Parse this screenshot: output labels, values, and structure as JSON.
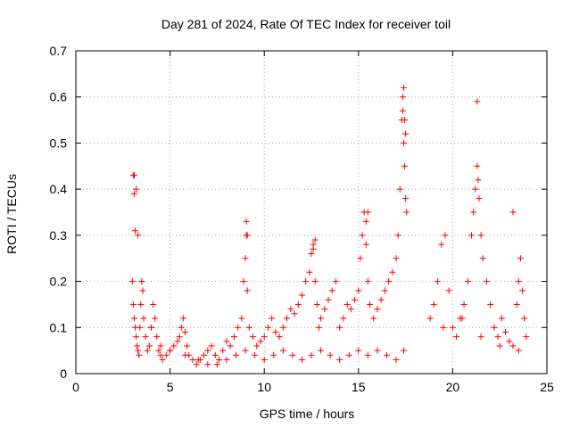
{
  "chart_data": {
    "type": "scatter",
    "title": "Day 281 of 2024, Rate Of TEC Index for receiver toil",
    "xlabel": "GPS time / hours",
    "ylabel": "ROTI / TECUs",
    "xlim": [
      0,
      25
    ],
    "ylim": [
      0,
      0.7
    ],
    "xticks": [
      "0",
      "5",
      "10",
      "15",
      "20",
      "25"
    ],
    "yticks": [
      "0",
      "0.1",
      "0.2",
      "0.3",
      "0.4",
      "0.5",
      "0.6",
      "0.7"
    ],
    "grid": true,
    "marker": "+",
    "color": "#ff0000",
    "series": [
      {
        "x": [
          3.0,
          3.05,
          3.1,
          3.15,
          3.2,
          3.25,
          3.3,
          3.35,
          3.4,
          3.45,
          3.5,
          3.55,
          3.6,
          3.7,
          3.8,
          3.9,
          4.0,
          4.1,
          4.2,
          4.3,
          4.4,
          4.5,
          4.6,
          4.8,
          5.0,
          5.2,
          5.4,
          5.5,
          5.6,
          5.7,
          5.8,
          5.9,
          6.0,
          6.2,
          6.4,
          6.6,
          6.8,
          7.0,
          7.2,
          7.4,
          7.6,
          7.8,
          8.0,
          8.2,
          8.4,
          8.6,
          8.8,
          8.9,
          9.0,
          9.05,
          9.1,
          9.2,
          9.4,
          9.6,
          9.8,
          10.0,
          10.2,
          10.4,
          10.6,
          10.8,
          11.0,
          11.2,
          11.4,
          11.6,
          11.8,
          12.0,
          12.2,
          12.4,
          12.5,
          12.6,
          12.7,
          12.8,
          12.9,
          13.0,
          13.2,
          13.4,
          13.6,
          13.8,
          14.0,
          14.2,
          14.4,
          14.6,
          14.8,
          15.0,
          15.1,
          15.2,
          15.3,
          15.4,
          15.5,
          15.6,
          15.8,
          16.0,
          16.2,
          16.4,
          16.6,
          16.8,
          17.0,
          17.1,
          17.2,
          17.3,
          17.35,
          17.4,
          17.45,
          17.5,
          17.55,
          18.8,
          19.0,
          19.2,
          19.4,
          19.6,
          19.8,
          20.0,
          20.2,
          20.4,
          20.6,
          20.8,
          21.0,
          21.1,
          21.2,
          21.3,
          21.4,
          21.5,
          21.6,
          21.8,
          22.0,
          22.2,
          22.4,
          22.6,
          22.8,
          23.0,
          23.2,
          23.4,
          23.5,
          23.6,
          23.7,
          23.8,
          23.9,
          3.1,
          3.2,
          3.3,
          3.5,
          4.0,
          4.5,
          5.0,
          5.8,
          6.5,
          7.0,
          7.5,
          8.0,
          8.5,
          9.0,
          9.5,
          10.0,
          10.5,
          11.0,
          11.5,
          12.0,
          12.5,
          13.0,
          13.5,
          14.0,
          14.5,
          15.0,
          15.5,
          16.0,
          16.5,
          17.0,
          17.4,
          19.5,
          20.5,
          21.5,
          22.5,
          23.5,
          3.05,
          3.1,
          3.15,
          9.05,
          9.1,
          12.6,
          12.7,
          15.4,
          15.5,
          17.35,
          17.4,
          17.45,
          17.5,
          21.3,
          21.35,
          23.2
        ],
        "y": [
          0.2,
          0.15,
          0.12,
          0.1,
          0.08,
          0.06,
          0.05,
          0.04,
          0.1,
          0.15,
          0.2,
          0.18,
          0.12,
          0.08,
          0.05,
          0.06,
          0.1,
          0.15,
          0.12,
          0.08,
          0.05,
          0.04,
          0.03,
          0.04,
          0.05,
          0.06,
          0.07,
          0.08,
          0.1,
          0.12,
          0.09,
          0.06,
          0.04,
          0.03,
          0.02,
          0.03,
          0.04,
          0.05,
          0.06,
          0.04,
          0.03,
          0.05,
          0.07,
          0.06,
          0.08,
          0.1,
          0.12,
          0.2,
          0.25,
          0.3,
          0.18,
          0.1,
          0.08,
          0.06,
          0.07,
          0.08,
          0.1,
          0.12,
          0.09,
          0.08,
          0.1,
          0.12,
          0.14,
          0.13,
          0.15,
          0.17,
          0.2,
          0.22,
          0.26,
          0.28,
          0.2,
          0.15,
          0.1,
          0.12,
          0.14,
          0.16,
          0.18,
          0.2,
          0.1,
          0.12,
          0.15,
          0.14,
          0.16,
          0.18,
          0.25,
          0.3,
          0.35,
          0.28,
          0.2,
          0.15,
          0.12,
          0.14,
          0.16,
          0.18,
          0.2,
          0.22,
          0.25,
          0.3,
          0.4,
          0.55,
          0.6,
          0.5,
          0.45,
          0.38,
          0.35,
          0.12,
          0.15,
          0.2,
          0.28,
          0.3,
          0.18,
          0.1,
          0.08,
          0.12,
          0.15,
          0.2,
          0.3,
          0.35,
          0.4,
          0.45,
          0.38,
          0.3,
          0.25,
          0.2,
          0.15,
          0.1,
          0.08,
          0.12,
          0.09,
          0.07,
          0.06,
          0.15,
          0.2,
          0.25,
          0.18,
          0.12,
          0.08,
          0.43,
          0.4,
          0.3,
          0.2,
          0.1,
          0.06,
          0.05,
          0.04,
          0.03,
          0.02,
          0.02,
          0.03,
          0.04,
          0.05,
          0.04,
          0.03,
          0.04,
          0.05,
          0.04,
          0.03,
          0.04,
          0.05,
          0.04,
          0.03,
          0.04,
          0.05,
          0.04,
          0.05,
          0.04,
          0.03,
          0.05,
          0.1,
          0.12,
          0.08,
          0.06,
          0.05,
          0.43,
          0.39,
          0.31,
          0.33,
          0.3,
          0.27,
          0.29,
          0.33,
          0.35,
          0.57,
          0.62,
          0.55,
          0.52,
          0.59,
          0.42,
          0.35
        ]
      }
    ]
  }
}
